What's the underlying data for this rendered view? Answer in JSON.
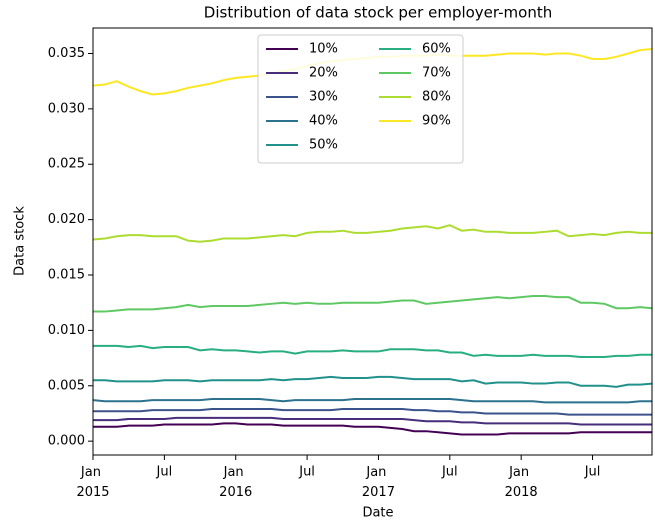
{
  "chart_data": {
    "type": "line",
    "title": "Distribution of data stock per employer-month",
    "xlabel": "Date",
    "ylabel": "Data stock",
    "x": [
      "2015-01",
      "2015-02",
      "2015-03",
      "2015-04",
      "2015-05",
      "2015-06",
      "2015-07",
      "2015-08",
      "2015-09",
      "2015-10",
      "2015-11",
      "2015-12",
      "2016-01",
      "2016-02",
      "2016-03",
      "2016-04",
      "2016-05",
      "2016-06",
      "2016-07",
      "2016-08",
      "2016-09",
      "2016-10",
      "2016-11",
      "2016-12",
      "2017-01",
      "2017-02",
      "2017-03",
      "2017-04",
      "2017-05",
      "2017-06",
      "2017-07",
      "2017-08",
      "2017-09",
      "2017-10",
      "2017-11",
      "2017-12",
      "2018-01",
      "2018-02",
      "2018-03",
      "2018-04",
      "2018-05",
      "2018-06",
      "2018-07",
      "2018-08",
      "2018-09",
      "2018-10",
      "2018-11",
      "2018-12"
    ],
    "xlim": [
      "2015-01",
      "2018-12"
    ],
    "xticks": [
      {
        "value": "2015-01",
        "label": "Jan 2015"
      },
      {
        "value": "2015-07",
        "label": "Jul"
      },
      {
        "value": "2016-01",
        "label": "Jan 2016"
      },
      {
        "value": "2016-07",
        "label": "Jul"
      },
      {
        "value": "2017-01",
        "label": "Jan 2017"
      },
      {
        "value": "2017-07",
        "label": "Jul"
      },
      {
        "value": "2018-01",
        "label": "Jan 2018"
      },
      {
        "value": "2018-07",
        "label": "Jul"
      }
    ],
    "ylim": [
      -0.00125,
      0.0373
    ],
    "yticks": [
      {
        "value": 0,
        "label": "0.000"
      },
      0.005,
      {
        "value": 0.01,
        "label": "0.010"
      },
      0.015,
      {
        "value": 0.02,
        "label": "0.020"
      },
      0.025,
      {
        "value": 0.03,
        "label": "0.030"
      },
      0.035
    ],
    "legend": "upper center",
    "series": [
      {
        "name": "10%",
        "color": "#440154",
        "values": [
          0.0013,
          0.0013,
          0.0013,
          0.0014,
          0.0014,
          0.0014,
          0.0015,
          0.0015,
          0.0015,
          0.0015,
          0.0015,
          0.0016,
          0.0016,
          0.0015,
          0.0015,
          0.0015,
          0.0014,
          0.0014,
          0.0014,
          0.0014,
          0.0014,
          0.0014,
          0.0013,
          0.0013,
          0.0013,
          0.0012,
          0.0011,
          0.0009,
          0.0009,
          0.0008,
          0.0007,
          0.0006,
          0.0006,
          0.0006,
          0.0006,
          0.0007,
          0.0007,
          0.0007,
          0.0007,
          0.0007,
          0.0007,
          0.0008,
          0.0008,
          0.0008,
          0.0008,
          0.0008,
          0.0008,
          0.0008
        ]
      },
      {
        "name": "20%",
        "color": "#472d7b",
        "values": [
          0.0019,
          0.0019,
          0.0019,
          0.002,
          0.002,
          0.002,
          0.002,
          0.0021,
          0.0021,
          0.0021,
          0.0021,
          0.0021,
          0.0021,
          0.0021,
          0.0021,
          0.0021,
          0.002,
          0.002,
          0.002,
          0.002,
          0.002,
          0.002,
          0.002,
          0.002,
          0.002,
          0.002,
          0.002,
          0.0019,
          0.0018,
          0.0018,
          0.0018,
          0.0017,
          0.0017,
          0.0016,
          0.0016,
          0.0016,
          0.0016,
          0.0016,
          0.0016,
          0.0016,
          0.0016,
          0.0015,
          0.0015,
          0.0015,
          0.0015,
          0.0015,
          0.0015,
          0.0015
        ]
      },
      {
        "name": "30%",
        "color": "#3b528b",
        "values": [
          0.0027,
          0.0027,
          0.0027,
          0.0027,
          0.0027,
          0.0028,
          0.0028,
          0.0028,
          0.0028,
          0.0028,
          0.0029,
          0.0029,
          0.0029,
          0.0029,
          0.0029,
          0.0029,
          0.0028,
          0.0028,
          0.0028,
          0.0028,
          0.0028,
          0.0029,
          0.0029,
          0.0029,
          0.0029,
          0.0029,
          0.0029,
          0.0028,
          0.0028,
          0.0027,
          0.0027,
          0.0026,
          0.0026,
          0.0025,
          0.0025,
          0.0025,
          0.0025,
          0.0025,
          0.0025,
          0.0025,
          0.0024,
          0.0024,
          0.0024,
          0.0024,
          0.0024,
          0.0024,
          0.0024,
          0.0024
        ]
      },
      {
        "name": "40%",
        "color": "#2c728e",
        "values": [
          0.0037,
          0.0036,
          0.0036,
          0.0036,
          0.0036,
          0.0037,
          0.0037,
          0.0037,
          0.0037,
          0.0037,
          0.0038,
          0.0038,
          0.0038,
          0.0038,
          0.0038,
          0.0037,
          0.0036,
          0.0037,
          0.0037,
          0.0037,
          0.0037,
          0.0037,
          0.0038,
          0.0038,
          0.0038,
          0.0038,
          0.0038,
          0.0038,
          0.0038,
          0.0038,
          0.0038,
          0.0037,
          0.0036,
          0.0036,
          0.0036,
          0.0036,
          0.0036,
          0.0036,
          0.0035,
          0.0035,
          0.0035,
          0.0035,
          0.0035,
          0.0035,
          0.0035,
          0.0035,
          0.0036,
          0.0036
        ]
      },
      {
        "name": "50%",
        "color": "#21918c",
        "values": [
          0.0055,
          0.0055,
          0.0054,
          0.0054,
          0.0054,
          0.0054,
          0.0055,
          0.0055,
          0.0055,
          0.0054,
          0.0055,
          0.0055,
          0.0055,
          0.0055,
          0.0055,
          0.0056,
          0.0055,
          0.0056,
          0.0056,
          0.0057,
          0.0058,
          0.0057,
          0.0057,
          0.0057,
          0.0058,
          0.0058,
          0.0057,
          0.0056,
          0.0056,
          0.0056,
          0.0056,
          0.0054,
          0.0055,
          0.0052,
          0.0053,
          0.0053,
          0.0053,
          0.0052,
          0.0052,
          0.0053,
          0.0053,
          0.005,
          0.005,
          0.005,
          0.0049,
          0.0051,
          0.0051,
          0.0052
        ]
      },
      {
        "name": "60%",
        "color": "#28ae80",
        "values": [
          0.0086,
          0.0086,
          0.0086,
          0.0085,
          0.0086,
          0.0084,
          0.0085,
          0.0085,
          0.0085,
          0.0082,
          0.0083,
          0.0082,
          0.0082,
          0.0081,
          0.008,
          0.0081,
          0.0081,
          0.0079,
          0.0081,
          0.0081,
          0.0081,
          0.0082,
          0.0081,
          0.0081,
          0.0081,
          0.0083,
          0.0083,
          0.0083,
          0.0082,
          0.0082,
          0.008,
          0.008,
          0.0077,
          0.0078,
          0.0077,
          0.0077,
          0.0077,
          0.0078,
          0.0077,
          0.0077,
          0.0077,
          0.0076,
          0.0076,
          0.0076,
          0.0077,
          0.0077,
          0.0078,
          0.0078
        ]
      },
      {
        "name": "70%",
        "color": "#5ec962",
        "values": [
          0.0117,
          0.0117,
          0.0118,
          0.0119,
          0.0119,
          0.0119,
          0.012,
          0.0121,
          0.0123,
          0.0121,
          0.0122,
          0.0122,
          0.0122,
          0.0122,
          0.0123,
          0.0124,
          0.0125,
          0.0124,
          0.0125,
          0.0124,
          0.0124,
          0.0125,
          0.0125,
          0.0125,
          0.0125,
          0.0126,
          0.0127,
          0.0127,
          0.0124,
          0.0125,
          0.0126,
          0.0127,
          0.0128,
          0.0129,
          0.013,
          0.0129,
          0.013,
          0.0131,
          0.0131,
          0.013,
          0.013,
          0.0125,
          0.0125,
          0.0124,
          0.012,
          0.012,
          0.0121,
          0.012
        ]
      },
      {
        "name": "80%",
        "color": "#addc30",
        "values": [
          0.0182,
          0.0183,
          0.0185,
          0.0186,
          0.0186,
          0.0185,
          0.0185,
          0.0185,
          0.0181,
          0.018,
          0.0181,
          0.0183,
          0.0183,
          0.0183,
          0.0184,
          0.0185,
          0.0186,
          0.0185,
          0.0188,
          0.0189,
          0.0189,
          0.019,
          0.0188,
          0.0188,
          0.0189,
          0.019,
          0.0192,
          0.0193,
          0.0194,
          0.0192,
          0.0195,
          0.019,
          0.0191,
          0.0189,
          0.0189,
          0.0188,
          0.0188,
          0.0188,
          0.0189,
          0.019,
          0.0185,
          0.0186,
          0.0187,
          0.0186,
          0.0188,
          0.0189,
          0.0188,
          0.0188
        ]
      },
      {
        "name": "90%",
        "color": "#fde725",
        "values": [
          0.0321,
          0.0322,
          0.0325,
          0.032,
          0.0316,
          0.0313,
          0.0314,
          0.0316,
          0.0319,
          0.0321,
          0.0323,
          0.0326,
          0.0328,
          0.0329,
          0.033,
          0.0332,
          0.0334,
          0.0336,
          0.0339,
          0.0341,
          0.0343,
          0.0344,
          0.0345,
          0.0346,
          0.0347,
          0.0347,
          0.0348,
          0.0348,
          0.0348,
          0.0349,
          0.0348,
          0.0348,
          0.0348,
          0.0348,
          0.0349,
          0.035,
          0.035,
          0.035,
          0.0349,
          0.035,
          0.035,
          0.0348,
          0.0345,
          0.0345,
          0.0347,
          0.035,
          0.0353,
          0.0354
        ]
      }
    ]
  }
}
